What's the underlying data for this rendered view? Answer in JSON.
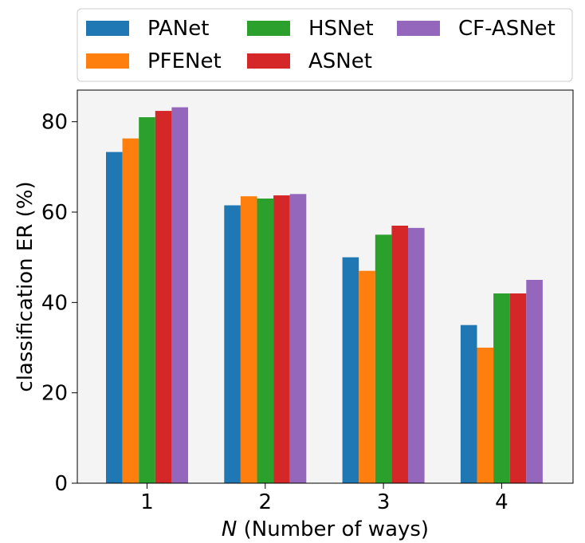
{
  "chart_data": {
    "type": "bar",
    "xlabel_var": "N",
    "xlabel_rest": " (Number of ways)",
    "ylabel": "classification ER (%)",
    "categories": [
      "1",
      "2",
      "3",
      "4"
    ],
    "ylim": [
      0,
      87
    ],
    "yticks": [
      "0",
      "20",
      "40",
      "60",
      "80"
    ],
    "grid": false,
    "plot_background": "#f4f4f4",
    "legend_position": "top, above plot",
    "series": [
      {
        "name": "PANet",
        "color": "#1f77b4",
        "values": [
          73.3,
          61.5,
          50.0,
          35.0
        ]
      },
      {
        "name": "PFENet",
        "color": "#ff7f0e",
        "values": [
          76.3,
          63.5,
          47.0,
          30.0
        ]
      },
      {
        "name": "HSNet",
        "color": "#2ca02c",
        "values": [
          81.0,
          63.0,
          55.0,
          42.0
        ]
      },
      {
        "name": "ASNet",
        "color": "#d62728",
        "values": [
          82.4,
          63.7,
          57.0,
          42.0
        ]
      },
      {
        "name": "CF-ASNet",
        "color": "#9467bd",
        "values": [
          83.2,
          64.0,
          56.5,
          45.0
        ]
      }
    ]
  }
}
